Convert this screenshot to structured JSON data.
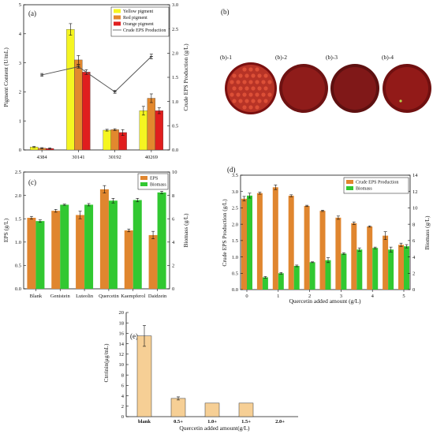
{
  "colors": {
    "yellow": "#f5f521",
    "red": "#e2882e",
    "orange": "#e01e1e",
    "line": "#555555",
    "eps": "#e0862f",
    "biomass": "#31c831",
    "citrinin": "#f6cf95",
    "plate": "#8a1616"
  },
  "chart_data": [
    {
      "panel": "(a)",
      "type": "bar",
      "categories": [
        "4384",
        "30141",
        "30192",
        "40269"
      ],
      "series": [
        {
          "name": "Yellow pigment",
          "color": "yellow",
          "values": [
            0.1,
            4.15,
            0.68,
            1.35
          ],
          "errors": [
            0.02,
            0.2,
            0.03,
            0.15
          ]
        },
        {
          "name": "Red pigment",
          "color": "red",
          "values": [
            0.06,
            3.1,
            0.7,
            1.78
          ],
          "errors": [
            0.02,
            0.15,
            0.03,
            0.15
          ]
        },
        {
          "name": "Orange pigment",
          "color": "orange",
          "values": [
            0.05,
            2.68,
            0.6,
            1.35
          ],
          "errors": [
            0.02,
            0.08,
            0.1,
            0.1
          ]
        }
      ],
      "line_series": {
        "name": "Crude EPS Production",
        "values": [
          1.55,
          1.72,
          1.2,
          1.93
        ],
        "errors": [
          0.03,
          0.03,
          0.03,
          0.05
        ]
      },
      "ylabel": "Pigment Content (U/mL)",
      "y2label": "Crude EPS Production (g/L)",
      "ylim": [
        0,
        5
      ],
      "yticks": [
        0,
        1,
        2,
        3,
        4,
        5
      ],
      "y2lim": [
        0,
        3.0
      ],
      "y2ticks": [
        "0.0",
        "0.5",
        "1.0",
        "1.5",
        "2.0",
        "2.5",
        "3.0"
      ],
      "legend_position": "top-right"
    },
    {
      "panel": "(c)",
      "type": "bar",
      "categories": [
        "Blank",
        "Genistein",
        "Luteolin",
        "Quercetin",
        "Kaempferol",
        "Daidzein"
      ],
      "series": [
        {
          "name": "EPS",
          "color": "eps",
          "values": [
            1.52,
            1.67,
            1.58,
            2.13,
            1.25,
            1.15
          ],
          "errors": [
            0.03,
            0.03,
            0.08,
            0.08,
            0.03,
            0.08
          ]
        },
        {
          "name": "Biomass",
          "color": "biomass",
          "values": [
            5.8,
            7.2,
            7.2,
            7.55,
            7.6,
            8.25
          ],
          "errors": [
            0.1,
            0.05,
            0.1,
            0.2,
            0.15,
            0.1
          ]
        }
      ],
      "ylabel": "EPS (g/L)",
      "y2label": "Biomass (g/L)",
      "ylim": [
        0,
        2.5
      ],
      "yticks": [
        "0.0",
        "0.5",
        "1.0",
        "1.5",
        "2.0",
        "2.5"
      ],
      "y2lim": [
        0,
        10
      ],
      "y2ticks": [
        "0",
        "2",
        "4",
        "6",
        "8",
        "10"
      ],
      "legend_position": "top-right"
    },
    {
      "panel": "(d)",
      "type": "bar",
      "x": [
        0,
        0.5,
        1,
        1.5,
        2,
        2.5,
        3,
        3.5,
        4,
        4.5,
        5
      ],
      "series": [
        {
          "name": "Crude EPS Production",
          "color": "eps",
          "values": [
            2.78,
            2.95,
            3.13,
            2.87,
            2.56,
            2.41,
            2.2,
            2.03,
            1.93,
            1.65,
            1.37
          ],
          "errors": [
            0.07,
            0.03,
            0.07,
            0.03,
            0.02,
            0.02,
            0.05,
            0.04,
            0.02,
            0.12,
            0.05
          ]
        },
        {
          "name": "Biomass",
          "color": "biomass",
          "values": [
            11.5,
            1.5,
            2.0,
            2.9,
            3.35,
            3.6,
            4.4,
            4.9,
            5.1,
            4.9,
            5.3
          ],
          "errors": [
            0.3,
            0.1,
            0.1,
            0.1,
            0.05,
            0.3,
            0.1,
            0.2,
            0.1,
            0.3,
            0.2
          ]
        }
      ],
      "xlabel": "Quercetin added amount (g/L)",
      "xticks": [
        "0",
        "1",
        "2",
        "3",
        "4",
        "5"
      ],
      "ylabel": "Crude EPS Production (g/L)",
      "y2label": "Biomass (g/L)",
      "ylim": [
        0,
        3.5
      ],
      "yticks": [
        "0.0",
        "0.5",
        "1.0",
        "1.5",
        "2.0",
        "2.5",
        "3.0",
        "3.5"
      ],
      "y2lim": [
        0,
        14
      ],
      "y2ticks": [
        "0",
        "2",
        "4",
        "6",
        "8",
        "10",
        "12",
        "14"
      ],
      "legend_position": "top-right"
    },
    {
      "panel": "(e)",
      "type": "bar",
      "categories": [
        "blank",
        "0.5+",
        "1.0+",
        "1.5+",
        "2.0+"
      ],
      "values": [
        15.5,
        3.5,
        2.6,
        2.6,
        0
      ],
      "errors": [
        2.0,
        0.3,
        0,
        0,
        0
      ],
      "xlabel": "Quercetin added amount(g/L)",
      "ylabel": "Ctrrinin(μg/mL)",
      "ylim": [
        0,
        20
      ],
      "yticks": [
        "0",
        "2",
        "4",
        "6",
        "8",
        "10",
        "12",
        "14",
        "16",
        "18",
        "20"
      ]
    }
  ],
  "panel_b": {
    "label": "(b)",
    "plates": [
      "(b)-1",
      "(b)-2",
      "(b)-3",
      "(b)-4"
    ]
  }
}
